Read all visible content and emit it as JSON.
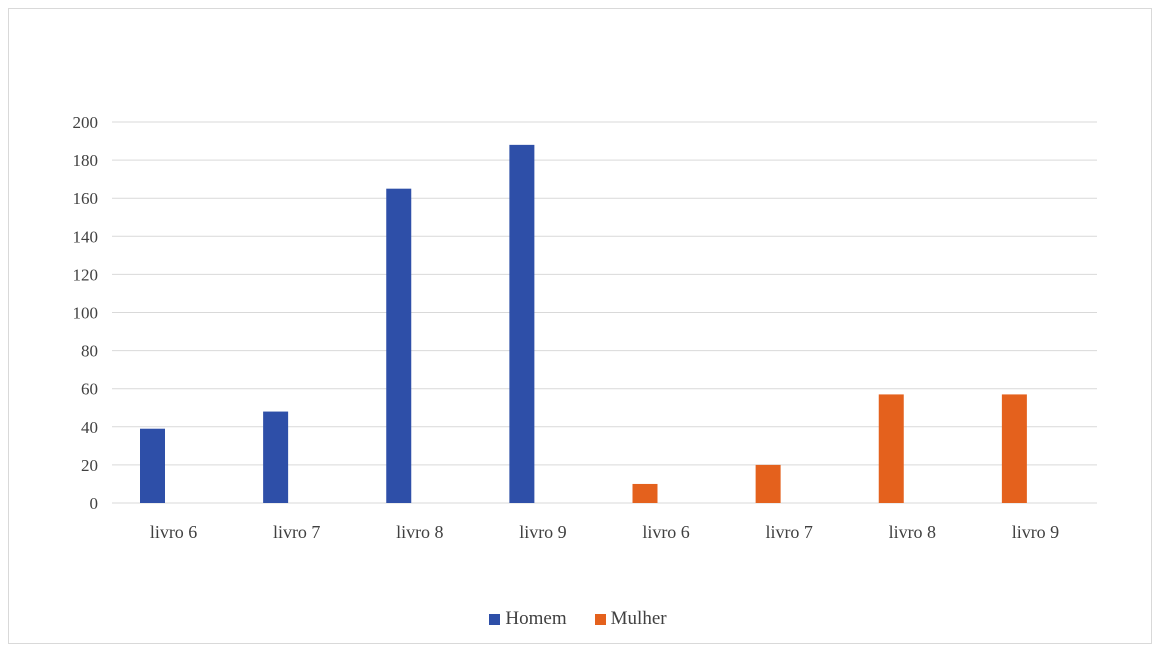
{
  "chart_data": {
    "type": "bar",
    "title": "",
    "xlabel": "",
    "ylabel": "",
    "ylim": [
      0,
      200
    ],
    "y_ticks": [
      0,
      20,
      40,
      60,
      80,
      100,
      120,
      140,
      160,
      180,
      200
    ],
    "grid": true,
    "legend_position": "bottom",
    "categories": [
      "livro 6",
      "livro 7",
      "livro 8",
      "livro 9",
      "livro 6",
      "livro 7",
      "livro 8",
      "livro 9"
    ],
    "series": [
      {
        "name": "Homem",
        "color": "#2e4fa8",
        "values": [
          39,
          48,
          165,
          188,
          null,
          null,
          null,
          null
        ]
      },
      {
        "name": "Mulher",
        "color": "#e4611d",
        "values": [
          null,
          null,
          null,
          null,
          10,
          20,
          57,
          57
        ]
      }
    ]
  }
}
